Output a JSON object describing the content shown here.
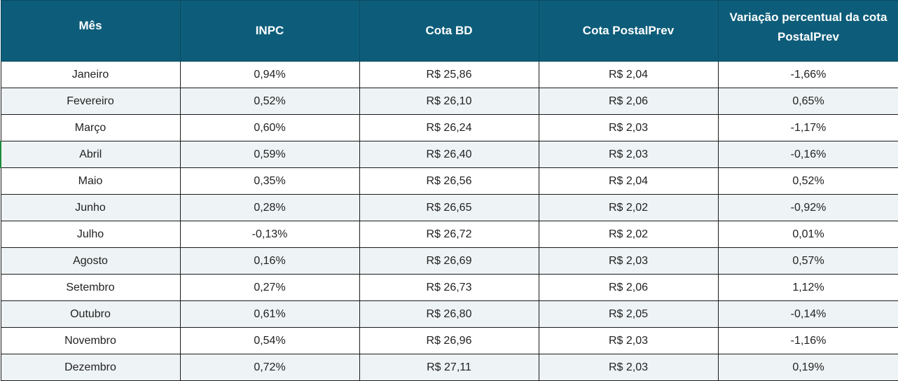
{
  "table": {
    "headers": {
      "month": "Mês",
      "inpc": "INPC",
      "cota_bd": "Cota BD",
      "cota_postalprev": "Cota PostalPrev",
      "variacao": "Variação percentual da cota PostalPrev"
    },
    "rows": [
      {
        "month": "Janeiro",
        "inpc": "0,94%",
        "cota_bd": "R$ 25,86",
        "cota_postalprev": "R$ 2,04",
        "variacao": "-1,66%"
      },
      {
        "month": "Fevereiro",
        "inpc": "0,52%",
        "cota_bd": "R$ 26,10",
        "cota_postalprev": "R$ 2,06",
        "variacao": "0,65%"
      },
      {
        "month": "Março",
        "inpc": "0,60%",
        "cota_bd": "R$ 26,24",
        "cota_postalprev": "R$ 2,03",
        "variacao": "-1,17%"
      },
      {
        "month": "Abril",
        "inpc": "0,59%",
        "cota_bd": "R$ 26,40",
        "cota_postalprev": "R$ 2,03",
        "variacao": "-0,16%"
      },
      {
        "month": "Maio",
        "inpc": "0,35%",
        "cota_bd": "R$ 26,56",
        "cota_postalprev": "R$ 2,04",
        "variacao": "0,52%"
      },
      {
        "month": "Junho",
        "inpc": "0,28%",
        "cota_bd": "R$ 26,65",
        "cota_postalprev": "R$ 2,02",
        "variacao": "-0,92%"
      },
      {
        "month": "Julho",
        "inpc": "-0,13%",
        "cota_bd": "R$ 26,72",
        "cota_postalprev": "R$ 2,02",
        "variacao": "0,01%"
      },
      {
        "month": "Agosto",
        "inpc": "0,16%",
        "cota_bd": "R$ 26,69",
        "cota_postalprev": "R$ 2,03",
        "variacao": "0,57%"
      },
      {
        "month": "Setembro",
        "inpc": "0,27%",
        "cota_bd": "R$ 26,73",
        "cota_postalprev": "R$ 2,06",
        "variacao": "1,12%"
      },
      {
        "month": "Outubro",
        "inpc": "0,61%",
        "cota_bd": "R$ 26,80",
        "cota_postalprev": "R$ 2,05",
        "variacao": "-0,14%"
      },
      {
        "month": "Novembro",
        "inpc": "0,54%",
        "cota_bd": "R$ 26,96",
        "cota_postalprev": "R$ 2,03",
        "variacao": "-1,16%"
      },
      {
        "month": "Dezembro",
        "inpc": "0,72%",
        "cota_bd": "R$ 27,11",
        "cota_postalprev": "R$ 2,03",
        "variacao": "0,19%"
      }
    ]
  },
  "colors": {
    "header_background": "#0d5d7a",
    "header_text": "#ffffff",
    "stripe_background": "#eef3f5",
    "selection_marker": "#1e8a3c"
  }
}
